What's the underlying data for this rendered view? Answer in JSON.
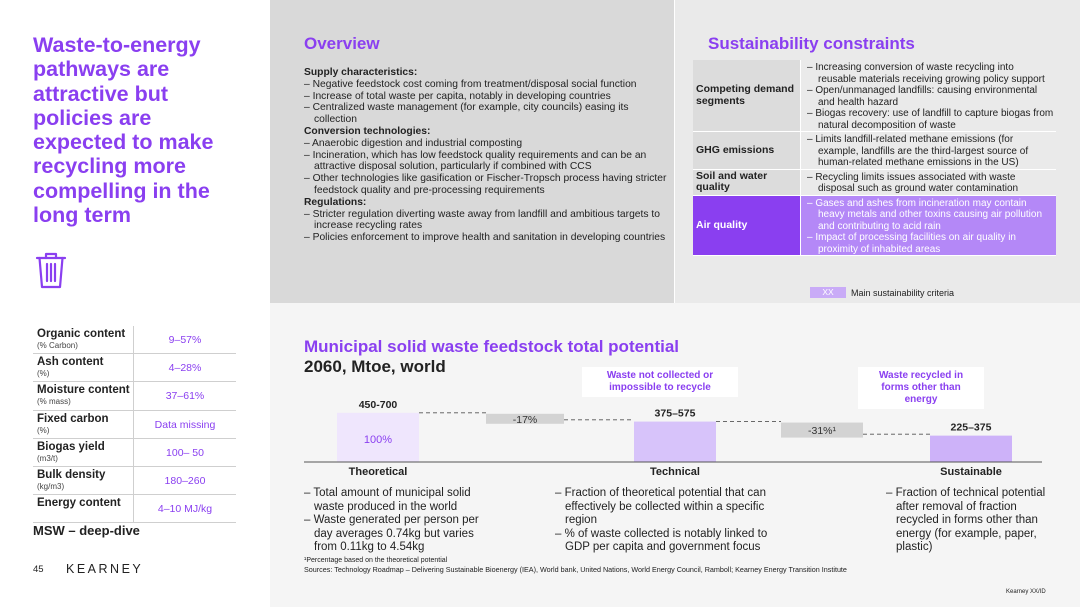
{
  "headline": "Waste-to-energy pathways are attractive but policies are expected to make recycling more compelling in the long term",
  "left_table": {
    "rows": [
      {
        "label": "Organic content",
        "unit": "(% Carbon)",
        "value": "9–57%"
      },
      {
        "label": "Ash content",
        "unit": "(%)",
        "value": "4–28%"
      },
      {
        "label": "Moisture content",
        "unit": "(% mass)",
        "value": "37–61%"
      },
      {
        "label": "Fixed carbon",
        "unit": "(%)",
        "value": "Data missing"
      },
      {
        "label": "Biogas yield",
        "unit": "(m3/t)",
        "value": "100– 50"
      },
      {
        "label": "Bulk density",
        "unit": "(kg/m3)",
        "value": "180–260"
      },
      {
        "label": "Energy content",
        "unit": "",
        "value": "4–10 MJ/kg"
      }
    ]
  },
  "section_label": "MSW – deep-dive",
  "page_number": "45",
  "brand": "KEARNEY",
  "overview": {
    "title": "Overview",
    "blocks": [
      {
        "heading": "Supply characteristics:",
        "items": [
          "– Negative feedstock cost coming from treatment/disposal social function",
          "– Increase of total waste per capita, notably in developing countries",
          "– Centralized waste management (for example, city councils) easing its collection"
        ]
      },
      {
        "heading": "Conversion technologies:",
        "items": [
          "– Anaerobic digestion and industrial composting",
          "– Incineration, which has low feedstock quality requirements and can be an attractive disposal solution, particularly if combined with CCS",
          "– Other technologies like gasification or Fischer-Tropsch process having stricter feedstock quality and pre-processing requirements"
        ]
      },
      {
        "heading": "Regulations:",
        "items": [
          "– Stricter regulation diverting waste away from landfill and ambitious targets to increase recycling rates",
          "– Policies enforcement to improve health and sanitation in developing countries"
        ]
      }
    ]
  },
  "sustainability": {
    "title": "Sustainability constraints",
    "rows": [
      {
        "category": "Competing demand segments",
        "highlight": false,
        "items": [
          "– Increasing conversion of waste recycling into reusable materials receiving growing policy support",
          "– Open/unmanaged landfills: causing environmental and health hazard",
          "– Biogas recovery: use of landfill to capture biogas from natural decomposition of waste"
        ]
      },
      {
        "category": "GHG emissions",
        "highlight": false,
        "items": [
          "– Limits landfill-related methane emissions (for example, landfills are the third-largest source of human-related methane emissions in the US)"
        ]
      },
      {
        "category": "Soil and water quality",
        "highlight": false,
        "items": [
          "– Recycling limits issues associated with waste disposal such as ground water contamination"
        ]
      },
      {
        "category": "Air quality",
        "highlight": true,
        "items": [
          "– Gases and ashes from incineration may contain heavy metals and other toxins causing air pollution and contributing to acid rain",
          "– Impact of processing facilities on air quality in proximity of inhabited areas"
        ]
      }
    ],
    "legend_swatch": "XX",
    "legend_label": "Main sustainability criteria"
  },
  "waterfall": {
    "title": "Municipal solid waste feedstock total potential",
    "subtitle": "2060, Mtoe, world",
    "callout_1": "Waste not collected or impossible to recycle",
    "callout_2": "Waste recycled in forms other than energy",
    "notes": [
      [
        "– Total amount of municipal solid waste produced in the world",
        "– Waste generated per person per day averages 0.74kg but varies from 0.11kg to 4.54kg"
      ],
      [
        "– Fraction of theoretical potential that can effectively be collected within a specific region",
        "– % of waste collected is notably linked to GDP per capita and government focus"
      ],
      [
        "– Fraction of technical potential after removal of fraction recycled in forms other than energy (for example, paper, plastic)"
      ]
    ]
  },
  "chart_data": {
    "type": "bar",
    "title": "Municipal solid waste feedstock total potential",
    "subtitle": "2060, Mtoe, world",
    "categories": [
      "Theoretical",
      "Technical",
      "Sustainable"
    ],
    "value_labels": [
      "450-700",
      "375–575",
      "225–375"
    ],
    "ranges": [
      [
        450,
        700
      ],
      [
        375,
        575
      ],
      [
        225,
        375
      ]
    ],
    "inner_labels": [
      "100%",
      "",
      ""
    ],
    "deltas": [
      {
        "label": "-17%",
        "between": [
          "Theoretical",
          "Technical"
        ]
      },
      {
        "label": "-31%¹",
        "between": [
          "Technical",
          "Sustainable"
        ]
      }
    ],
    "bar_colors": [
      "#efe6fd",
      "#d7c3fa",
      "#cdb2f9"
    ]
  },
  "footnote": "¹Percentage based on the theoretical potential",
  "sources": "Sources: Technology Roadmap – Delivering Sustainable Bioenergy (IEA), World bank, United Nations, World Energy Council, Ramboll; Kearney Energy Transition Institute",
  "copyright": "Kearney XX/ID"
}
